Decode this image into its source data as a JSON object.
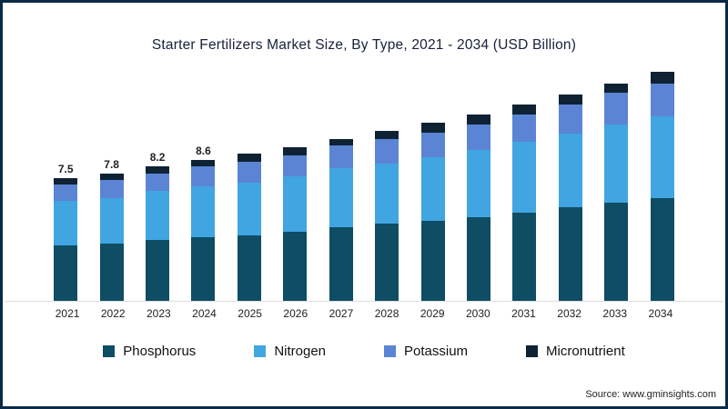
{
  "page": {
    "title": "Starter Fertilizers Market Size, By Type, 2021 - 2034 (USD Billion)",
    "source": "Source: www.gminsights.com"
  },
  "chart_data": {
    "type": "bar",
    "stacked": true,
    "title": "Starter Fertilizers Market Size, By Type, 2021 - 2034 (USD Billion)",
    "xlabel": "",
    "ylabel": "USD Billion",
    "ylim": [
      0,
      15
    ],
    "grid": false,
    "legend_position": "bottom",
    "categories": [
      "2021",
      "2022",
      "2023",
      "2024",
      "2025",
      "2026",
      "2027",
      "2028",
      "2029",
      "2030",
      "2031",
      "2032",
      "2033",
      "2034"
    ],
    "totals": [
      7.5,
      7.8,
      8.2,
      8.6,
      9.0,
      9.4,
      9.9,
      10.4,
      10.9,
      11.4,
      12.0,
      12.6,
      13.3,
      14.0
    ],
    "data_labels": [
      "7.5",
      "7.8",
      "8.2",
      "8.6",
      "",
      "",
      "",
      "",
      "",
      "",
      "",
      "",
      "",
      ""
    ],
    "series": [
      {
        "name": "Phosphorus",
        "color": "#0e4d64",
        "values": [
          3.4,
          3.5,
          3.7,
          3.9,
          4.0,
          4.2,
          4.5,
          4.7,
          4.9,
          5.1,
          5.4,
          5.7,
          6.0,
          6.3
        ]
      },
      {
        "name": "Nitrogen",
        "color": "#41a5e1",
        "values": [
          2.7,
          2.8,
          3.0,
          3.1,
          3.2,
          3.4,
          3.6,
          3.7,
          3.9,
          4.1,
          4.3,
          4.5,
          4.8,
          5.0
        ]
      },
      {
        "name": "Potassium",
        "color": "#5b84d4",
        "values": [
          1.0,
          1.1,
          1.1,
          1.2,
          1.3,
          1.3,
          1.4,
          1.5,
          1.5,
          1.6,
          1.7,
          1.8,
          1.9,
          2.0
        ]
      },
      {
        "name": "Micronutrient",
        "color": "#0e2233",
        "values": [
          0.4,
          0.4,
          0.4,
          0.4,
          0.5,
          0.5,
          0.4,
          0.5,
          0.6,
          0.6,
          0.6,
          0.6,
          0.6,
          0.7
        ]
      }
    ]
  }
}
